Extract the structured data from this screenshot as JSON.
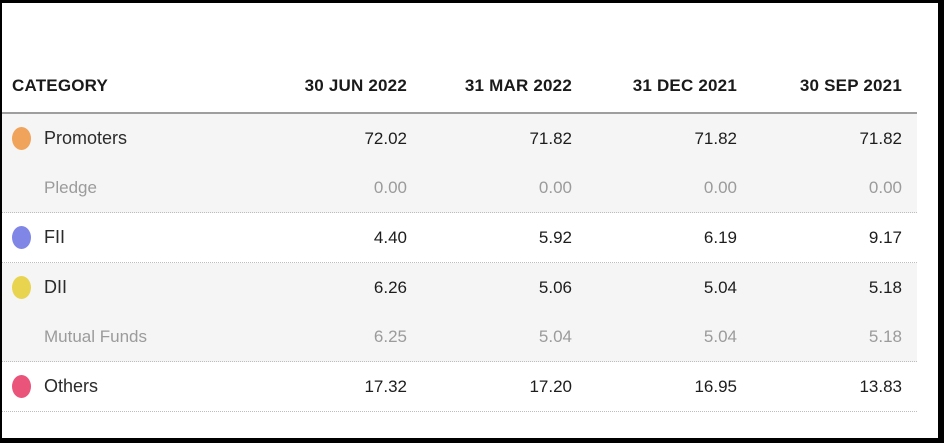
{
  "table": {
    "header": {
      "category_label": "CATEGORY",
      "columns": [
        "30 JUN 2022",
        "31 MAR 2022",
        "31 DEC 2021",
        "30 SEP 2021"
      ]
    },
    "groups": [
      {
        "shaded": true,
        "rows": [
          {
            "label": "Promoters",
            "sub": false,
            "dot_color": "#f0a35a",
            "dot_name": "promoters-dot",
            "values": [
              "72.02",
              "71.82",
              "71.82",
              "71.82"
            ]
          },
          {
            "label": "Pledge",
            "sub": true,
            "values": [
              "0.00",
              "0.00",
              "0.00",
              "0.00"
            ]
          }
        ]
      },
      {
        "shaded": false,
        "rows": [
          {
            "label": "FII",
            "sub": false,
            "dot_color": "#7f86e6",
            "dot_name": "fii-dot",
            "values": [
              "4.40",
              "5.92",
              "6.19",
              "9.17"
            ]
          }
        ]
      },
      {
        "shaded": true,
        "rows": [
          {
            "label": "DII",
            "sub": false,
            "dot_color": "#e9d44f",
            "dot_name": "dii-dot",
            "values": [
              "6.26",
              "5.06",
              "5.04",
              "5.18"
            ]
          },
          {
            "label": "Mutual Funds",
            "sub": true,
            "values": [
              "6.25",
              "5.04",
              "5.04",
              "5.18"
            ]
          }
        ]
      },
      {
        "shaded": false,
        "rows": [
          {
            "label": "Others",
            "sub": false,
            "dot_color": "#ea537a",
            "dot_name": "others-dot",
            "values": [
              "17.32",
              "17.20",
              "16.95",
              "13.83"
            ]
          }
        ]
      }
    ]
  },
  "colors": {
    "shaded_row_bg": "#f5f5f5",
    "header_separator": "#9e9e9e",
    "group_divider": "#bdbdbd",
    "main_text": "#1d1d1d",
    "sub_text": "#9b9b9b",
    "promoters_dot": "#f0a35a",
    "fii_dot": "#7f86e6",
    "dii_dot": "#e9d44f",
    "others_dot": "#ea537a"
  }
}
